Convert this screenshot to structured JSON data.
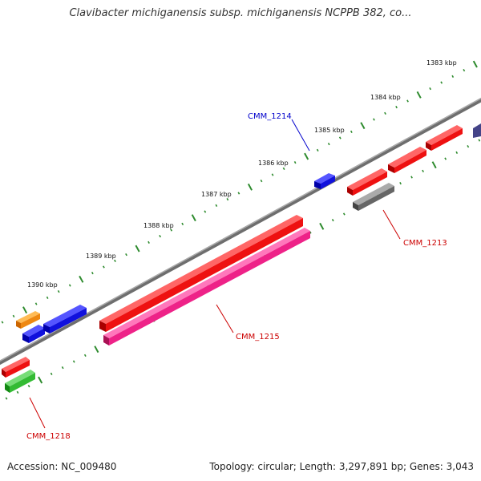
{
  "title": "Clavibacter michiganensis subsp. michiganensis NCPPB 382, co...",
  "footer": {
    "accession": "Accession: NC_009480",
    "stats": "Topology: circular; Length: 3,297,891 bp; Genes: 3,043"
  },
  "map": {
    "backbone_color": "#808080",
    "tick_color": "#2e8b2e",
    "tick_labels": [
      "1383 kbp",
      "1384 kbp",
      "1385 kbp",
      "1386 kbp",
      "1387 kbp",
      "1388 kbp",
      "1389 kbp",
      "1390 kbp"
    ],
    "gene_labels": [
      {
        "name": "CMM_1214",
        "color": "#0000cc"
      },
      {
        "name": "CMM_1213",
        "color": "#cc0000"
      },
      {
        "name": "CMM_1215",
        "color": "#cc0000"
      },
      {
        "name": "CMM_1218",
        "color": "#cc0000"
      }
    ],
    "feature_colors": {
      "red": "#ee1111",
      "magenta": "#ee2288",
      "blue": "#1111dd",
      "orange": "#ee8811",
      "green": "#33bb33",
      "gray": "#666666",
      "navy": "#444488"
    }
  }
}
